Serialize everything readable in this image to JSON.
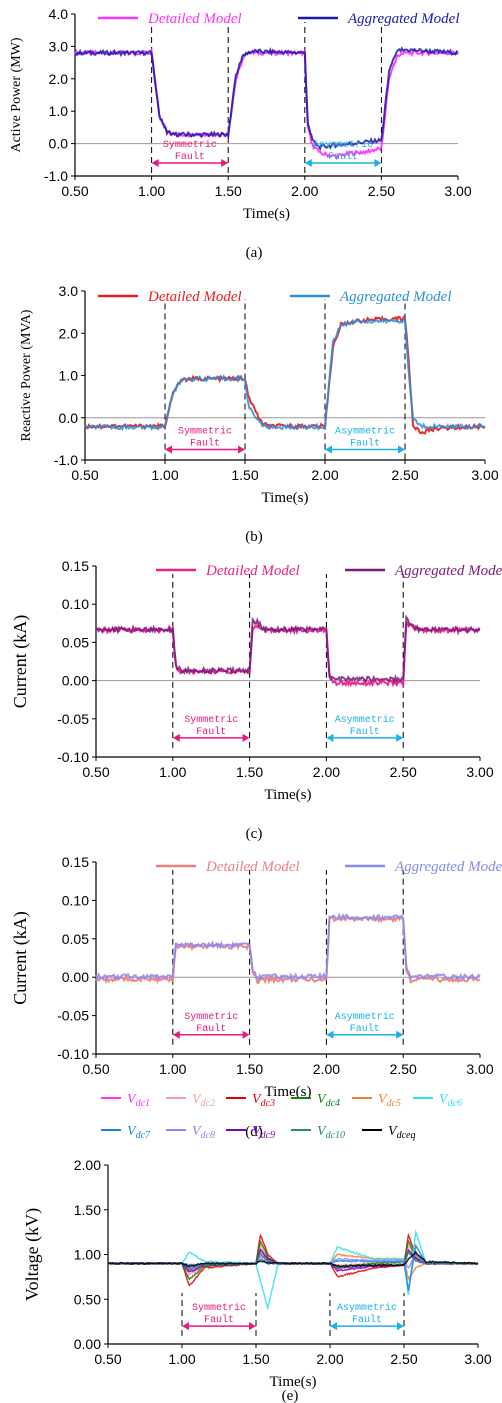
{
  "figure": {
    "xlabel": "Time(s)"
  },
  "chart_data": [
    {
      "type": "line",
      "panel_label": "(a)",
      "ylabel": "Active Power (MW)",
      "xlabel": "Time(s)",
      "xlim": [
        0.5,
        3.0
      ],
      "ylim": [
        -1.0,
        4.0
      ],
      "xticks": [
        "0.50",
        "1.00",
        "1.50",
        "2.00",
        "2.50",
        "3.00"
      ],
      "yticks": [
        "-1.0",
        "0.0",
        "1.0",
        "2.0",
        "3.0",
        "4.0"
      ],
      "legend_position": "top",
      "series": [
        {
          "name": "Detailed Model",
          "color": "#ff33ff",
          "x": [
            0.5,
            1.0,
            1.05,
            1.1,
            1.15,
            1.5,
            1.55,
            1.6,
            1.65,
            2.0,
            2.02,
            2.05,
            2.1,
            2.2,
            2.3,
            2.4,
            2.5,
            2.55,
            2.6,
            2.65,
            3.0
          ],
          "y": [
            2.8,
            2.8,
            0.9,
            0.35,
            0.28,
            0.28,
            2.0,
            2.7,
            2.8,
            2.8,
            0.5,
            -0.05,
            -0.3,
            -0.4,
            -0.3,
            -0.25,
            -0.15,
            2.0,
            2.7,
            2.8,
            2.8
          ]
        },
        {
          "name": "Aggregated Model",
          "color": "#1a1aa6",
          "x": [
            0.5,
            1.0,
            1.05,
            1.1,
            1.15,
            1.5,
            1.55,
            1.6,
            1.65,
            2.0,
            2.02,
            2.05,
            2.1,
            2.2,
            2.3,
            2.4,
            2.5,
            2.55,
            2.6,
            2.65,
            3.0
          ],
          "y": [
            2.8,
            2.8,
            0.9,
            0.35,
            0.28,
            0.28,
            2.1,
            2.75,
            2.85,
            2.8,
            0.6,
            0.1,
            -0.1,
            -0.05,
            0.0,
            0.05,
            0.1,
            2.2,
            2.85,
            2.9,
            2.8
          ]
        }
      ],
      "annotations": [
        {
          "label": "Symmetric\nFault",
          "start": 1.0,
          "end": 1.5,
          "y": -0.6,
          "color": "#e8197f"
        },
        {
          "label": "Asymmetric\nFault",
          "start": 2.0,
          "end": 2.5,
          "y": -0.6,
          "color": "#1ab0e8"
        }
      ]
    },
    {
      "type": "line",
      "panel_label": "(b)",
      "ylabel": "Reactive Power (MVA)",
      "xlabel": "Time(s)",
      "xlim": [
        0.5,
        3.0
      ],
      "ylim": [
        -1.0,
        3.0
      ],
      "xticks": [
        "0.50",
        "1.00",
        "1.50",
        "2.00",
        "2.50",
        "3.00"
      ],
      "yticks": [
        "-1.0",
        "0.0",
        "1.0",
        "2.0",
        "3.0"
      ],
      "legend_position": "top",
      "series": [
        {
          "name": "Detailed Model",
          "color": "#e82020",
          "x": [
            0.5,
            1.0,
            1.05,
            1.1,
            1.15,
            1.5,
            1.52,
            1.6,
            1.65,
            2.0,
            2.05,
            2.1,
            2.2,
            2.5,
            2.52,
            2.55,
            2.6,
            2.7,
            3.0
          ],
          "y": [
            -0.2,
            -0.2,
            0.6,
            0.88,
            0.92,
            0.93,
            0.5,
            -0.1,
            -0.2,
            -0.2,
            1.7,
            2.2,
            2.3,
            2.35,
            1.5,
            -0.2,
            -0.35,
            -0.25,
            -0.2
          ]
        },
        {
          "name": "Aggregated Model",
          "color": "#2b8fd6",
          "x": [
            0.5,
            1.0,
            1.05,
            1.1,
            1.15,
            1.5,
            1.52,
            1.6,
            1.65,
            2.0,
            2.05,
            2.1,
            2.2,
            2.5,
            2.52,
            2.55,
            2.6,
            2.7,
            3.0
          ],
          "y": [
            -0.22,
            -0.22,
            0.6,
            0.88,
            0.92,
            0.93,
            0.3,
            -0.15,
            -0.22,
            -0.22,
            1.8,
            2.2,
            2.28,
            2.3,
            1.2,
            0.0,
            -0.2,
            -0.2,
            -0.22
          ]
        }
      ],
      "annotations": [
        {
          "label": "Symmetric\nFault",
          "start": 1.0,
          "end": 1.5,
          "y": -0.75,
          "color": "#e8197f"
        },
        {
          "label": "Asymmetric\nFault",
          "start": 2.0,
          "end": 2.5,
          "y": -0.75,
          "color": "#1ab0e8"
        }
      ]
    },
    {
      "type": "line",
      "panel_label": "(c)",
      "ylabel": "Current (kA)",
      "xlabel": "Time(s)",
      "xlim": [
        0.5,
        3.0
      ],
      "ylim": [
        -0.1,
        0.15
      ],
      "xticks": [
        "0.50",
        "1.00",
        "1.50",
        "2.00",
        "2.50",
        "3.00"
      ],
      "yticks": [
        "-0.10",
        "-0.05",
        "0.00",
        "0.05",
        "0.10",
        "0.15"
      ],
      "legend_position": "top",
      "series": [
        {
          "name": "Detailed Model",
          "color": "#f0208a",
          "x": [
            0.5,
            1.0,
            1.02,
            1.05,
            1.5,
            1.52,
            1.55,
            1.6,
            2.0,
            2.02,
            2.05,
            2.5,
            2.52,
            2.55,
            2.6,
            3.0
          ],
          "y": [
            0.066,
            0.066,
            0.02,
            0.012,
            0.012,
            0.07,
            0.072,
            0.066,
            0.066,
            0.005,
            -0.003,
            -0.003,
            0.075,
            0.072,
            0.066,
            0.066
          ]
        },
        {
          "name": "Aggregated Model",
          "color": "#7a1a7a",
          "x": [
            0.5,
            1.0,
            1.02,
            1.05,
            1.5,
            1.52,
            1.55,
            1.6,
            2.0,
            2.02,
            2.05,
            2.5,
            2.52,
            2.55,
            2.6,
            3.0
          ],
          "y": [
            0.067,
            0.067,
            0.02,
            0.013,
            0.013,
            0.078,
            0.076,
            0.067,
            0.067,
            0.003,
            0.002,
            0.002,
            0.08,
            0.074,
            0.067,
            0.067
          ]
        }
      ],
      "annotations": [
        {
          "label": "Symmetric\nFault",
          "start": 1.0,
          "end": 1.5,
          "y": -0.075,
          "color": "#e8197f"
        },
        {
          "label": "Asymmetric\nFault",
          "start": 2.0,
          "end": 2.5,
          "y": -0.075,
          "color": "#1ab0e8"
        }
      ]
    },
    {
      "type": "line",
      "panel_label": "(d)",
      "ylabel": "Current (kA)",
      "xlabel": "Time(s)",
      "xlim": [
        0.5,
        3.0
      ],
      "ylim": [
        -0.1,
        0.15
      ],
      "xticks": [
        "0.50",
        "1.00",
        "1.50",
        "2.00",
        "2.50",
        "3.00"
      ],
      "yticks": [
        "-0.10",
        "-0.05",
        "0.00",
        "0.05",
        "0.10",
        "0.15"
      ],
      "legend_position": "top",
      "series": [
        {
          "name": "Detailed Model",
          "color": "#f08080",
          "x": [
            0.5,
            1.0,
            1.02,
            1.05,
            1.5,
            1.52,
            1.55,
            1.6,
            2.0,
            2.02,
            2.05,
            2.5,
            2.52,
            2.55,
            2.6,
            3.0
          ],
          "y": [
            -0.003,
            -0.003,
            0.04,
            0.04,
            0.04,
            0.005,
            -0.005,
            -0.003,
            -0.003,
            0.075,
            0.076,
            0.076,
            0.01,
            -0.005,
            -0.003,
            -0.003
          ]
        },
        {
          "name": "Aggregated Model",
          "color": "#8888ee",
          "x": [
            0.5,
            1.0,
            1.02,
            1.05,
            1.5,
            1.52,
            1.55,
            1.6,
            2.0,
            2.02,
            2.05,
            2.5,
            2.52,
            2.55,
            2.6,
            3.0
          ],
          "y": [
            0.001,
            0.001,
            0.045,
            0.042,
            0.042,
            0.01,
            0.0,
            0.001,
            0.001,
            0.08,
            0.078,
            0.078,
            0.015,
            0.0,
            0.001,
            0.001
          ]
        }
      ],
      "annotations": [
        {
          "label": "Symmetric\nFault",
          "start": 1.0,
          "end": 1.5,
          "y": -0.075,
          "color": "#e8197f"
        },
        {
          "label": "Asymmetric\nFault",
          "start": 2.0,
          "end": 2.5,
          "y": -0.075,
          "color": "#1ab0e8"
        }
      ]
    },
    {
      "type": "line",
      "panel_label": "(e)",
      "ylabel": "Voltage (kV)",
      "xlabel": "Time(s)",
      "xlim": [
        0.5,
        3.0
      ],
      "ylim": [
        0.0,
        2.0
      ],
      "xticks": [
        "0.50",
        "1.00",
        "1.50",
        "2.00",
        "2.50",
        "3.00"
      ],
      "yticks": [
        "0.00",
        "0.50",
        "1.00",
        "1.50",
        "2.00"
      ],
      "legend_position": "top",
      "series": [
        {
          "name": "V",
          "sub": "dc1",
          "color": "#ff33ff",
          "x": [
            0.5,
            1.0,
            1.05,
            1.15,
            1.5,
            1.53,
            1.58,
            1.65,
            2.0,
            2.05,
            2.3,
            2.5,
            2.53,
            2.58,
            2.65,
            3.0
          ],
          "y": [
            0.9,
            0.9,
            0.82,
            0.88,
            0.9,
            1.05,
            0.95,
            0.9,
            0.9,
            0.85,
            0.87,
            0.88,
            1.05,
            0.93,
            0.9,
            0.9
          ]
        },
        {
          "name": "V",
          "sub": "dc2",
          "color": "#f4a0a0",
          "x": [
            0.5,
            1.0,
            1.05,
            1.15,
            1.5,
            1.53,
            1.58,
            1.65,
            2.0,
            2.05,
            2.3,
            2.5,
            2.53,
            2.58,
            2.65,
            3.0
          ],
          "y": [
            0.9,
            0.9,
            0.78,
            0.87,
            0.9,
            1.1,
            0.95,
            0.9,
            0.9,
            0.88,
            0.9,
            0.9,
            1.1,
            0.95,
            0.9,
            0.9
          ]
        },
        {
          "name": "V",
          "sub": "dc3",
          "color": "#e80000",
          "x": [
            0.5,
            1.0,
            1.05,
            1.15,
            1.5,
            1.53,
            1.58,
            1.65,
            2.0,
            2.05,
            2.3,
            2.5,
            2.53,
            2.58,
            2.65,
            3.0
          ],
          "y": [
            0.9,
            0.9,
            0.65,
            0.85,
            0.9,
            1.22,
            1.0,
            0.9,
            0.9,
            0.75,
            0.85,
            0.88,
            1.22,
            1.0,
            0.9,
            0.9
          ]
        },
        {
          "name": "V",
          "sub": "dc4",
          "color": "#108010",
          "x": [
            0.5,
            1.0,
            1.05,
            1.15,
            1.5,
            1.53,
            1.58,
            1.65,
            2.0,
            2.05,
            2.3,
            2.5,
            2.53,
            2.58,
            2.65,
            3.0
          ],
          "y": [
            0.9,
            0.9,
            0.72,
            0.87,
            0.9,
            1.15,
            0.97,
            0.9,
            0.9,
            0.85,
            0.9,
            0.92,
            1.15,
            0.97,
            0.9,
            0.9
          ]
        },
        {
          "name": "V",
          "sub": "dc5",
          "color": "#f08030",
          "x": [
            0.5,
            1.0,
            1.05,
            1.15,
            1.5,
            1.53,
            1.58,
            1.65,
            2.0,
            2.05,
            2.3,
            2.5,
            2.53,
            2.58,
            2.65,
            3.0
          ],
          "y": [
            0.9,
            0.9,
            0.85,
            0.89,
            0.9,
            1.0,
            0.93,
            0.9,
            0.9,
            1.0,
            0.95,
            0.95,
            0.72,
            0.85,
            0.9,
            0.9
          ]
        },
        {
          "name": "V",
          "sub": "dc6",
          "color": "#33e0e8",
          "x": [
            0.5,
            1.0,
            1.05,
            1.15,
            1.5,
            1.53,
            1.58,
            1.65,
            2.0,
            2.05,
            2.3,
            2.5,
            2.53,
            2.58,
            2.65,
            3.0
          ],
          "y": [
            0.9,
            0.9,
            1.03,
            0.92,
            0.9,
            0.7,
            0.4,
            0.9,
            0.9,
            1.08,
            0.95,
            0.95,
            0.55,
            1.25,
            0.9,
            0.9
          ]
        },
        {
          "name": "V",
          "sub": "dc7",
          "color": "#1a80e8",
          "x": [
            0.5,
            1.0,
            1.05,
            1.15,
            1.5,
            1.53,
            1.58,
            1.65,
            2.0,
            2.05,
            2.3,
            2.5,
            2.53,
            2.58,
            2.65,
            3.0
          ],
          "y": [
            0.9,
            0.9,
            0.88,
            0.9,
            0.9,
            0.95,
            0.9,
            0.9,
            0.9,
            0.93,
            0.92,
            0.92,
            0.6,
            1.1,
            0.9,
            0.9
          ]
        },
        {
          "name": "V",
          "sub": "dc8",
          "color": "#8a8aee",
          "x": [
            0.5,
            1.0,
            1.05,
            1.15,
            1.5,
            1.53,
            1.58,
            1.65,
            2.0,
            2.05,
            2.3,
            2.5,
            2.53,
            2.58,
            2.65,
            3.0
          ],
          "y": [
            0.9,
            0.9,
            0.86,
            0.89,
            0.9,
            0.98,
            0.92,
            0.9,
            0.9,
            0.95,
            0.93,
            0.93,
            0.85,
            1.0,
            0.9,
            0.9
          ]
        },
        {
          "name": "V",
          "sub": "dc9",
          "color": "#8000c0",
          "x": [
            0.5,
            1.0,
            1.05,
            1.15,
            1.5,
            1.53,
            1.58,
            1.65,
            2.0,
            2.05,
            2.3,
            2.5,
            2.53,
            2.58,
            2.65,
            3.0
          ],
          "y": [
            0.9,
            0.9,
            0.8,
            0.88,
            0.9,
            1.05,
            0.95,
            0.9,
            0.9,
            0.82,
            0.87,
            0.88,
            1.05,
            0.95,
            0.9,
            0.9
          ]
        },
        {
          "name": "V",
          "sub": "dc10",
          "color": "#2a8a7a",
          "x": [
            0.5,
            1.0,
            1.05,
            1.15,
            1.5,
            1.53,
            1.58,
            1.65,
            2.0,
            2.05,
            2.3,
            2.5,
            2.53,
            2.58,
            2.65,
            3.0
          ],
          "y": [
            0.9,
            0.9,
            0.84,
            0.89,
            0.9,
            1.02,
            0.93,
            0.9,
            0.9,
            0.86,
            0.88,
            0.89,
            1.02,
            0.93,
            0.9,
            0.9
          ]
        },
        {
          "name": "V",
          "sub": "dceq",
          "color": "#000000",
          "x": [
            0.5,
            1.0,
            1.05,
            1.15,
            1.5,
            1.53,
            1.58,
            1.65,
            2.0,
            2.05,
            2.3,
            2.5,
            2.53,
            2.58,
            2.65,
            3.0
          ],
          "y": [
            0.9,
            0.9,
            0.87,
            0.9,
            0.9,
            0.93,
            0.91,
            0.9,
            0.9,
            0.87,
            0.88,
            0.88,
            0.95,
            1.02,
            0.92,
            0.9
          ]
        }
      ],
      "annotations": [
        {
          "label": "Symmetric\nFault",
          "start": 1.0,
          "end": 1.5,
          "y": 0.2,
          "color": "#e8197f"
        },
        {
          "label": "Asymmetric\nFault",
          "start": 2.0,
          "end": 2.5,
          "y": 0.2,
          "color": "#1ab0e8"
        }
      ]
    }
  ]
}
